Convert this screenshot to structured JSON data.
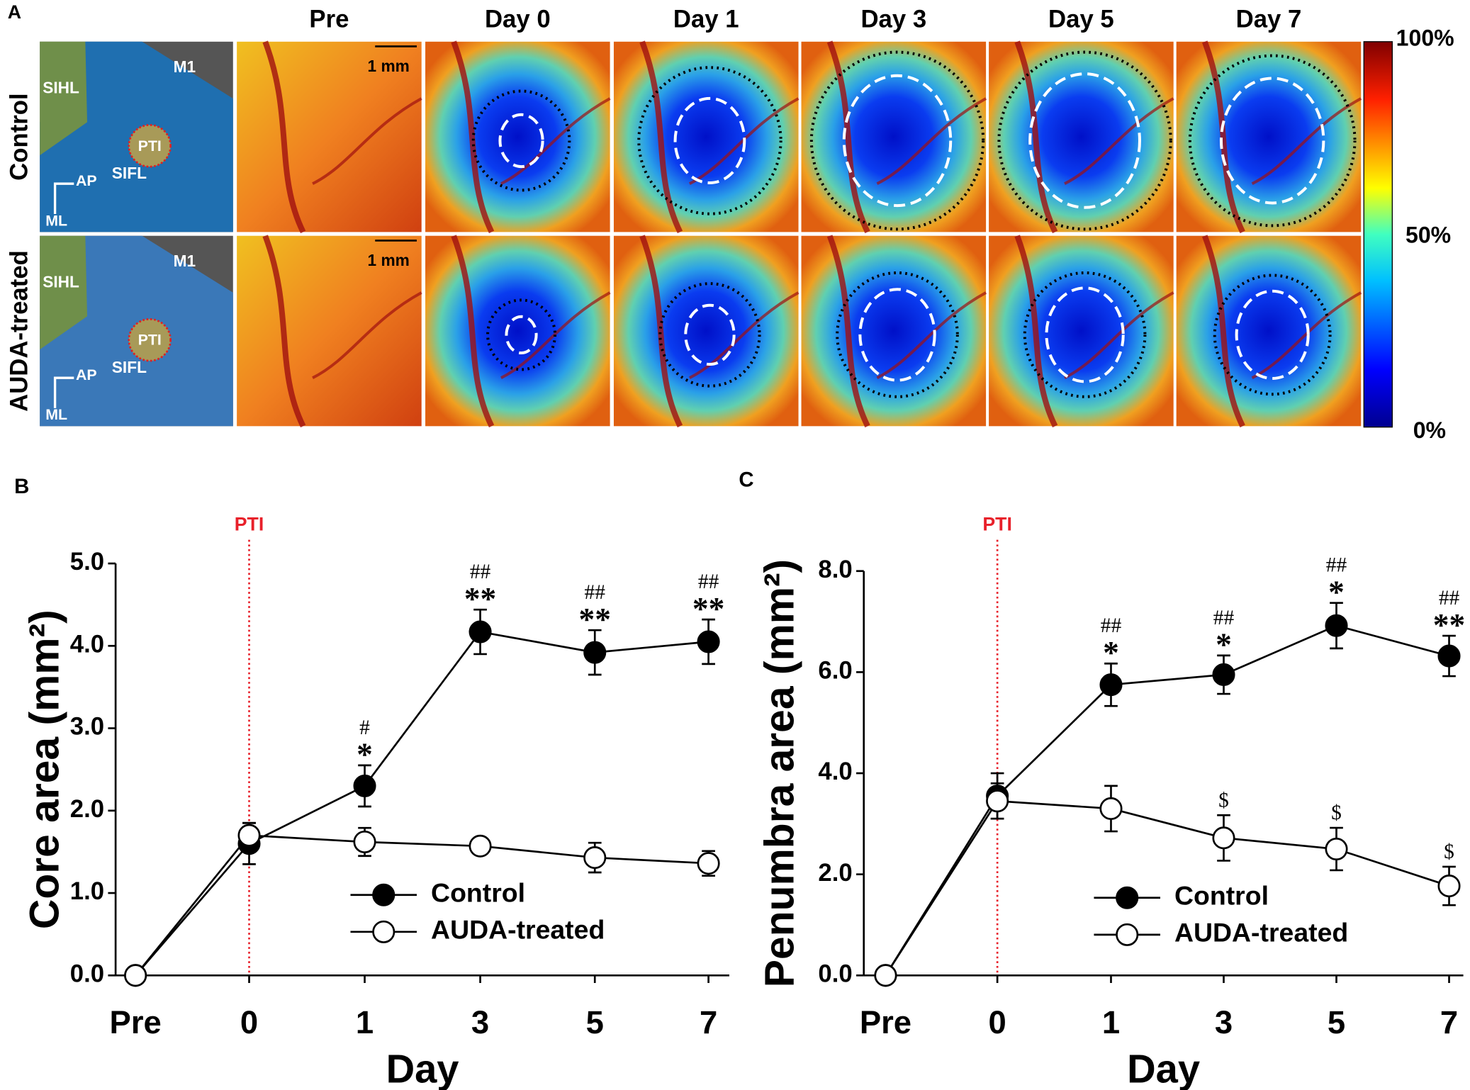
{
  "panel_a": {
    "letter": "A",
    "columns": [
      "Pre",
      "Day 0",
      "Day 1",
      "Day 3",
      "Day 5",
      "Day 7"
    ],
    "rows": [
      "Control",
      "AUDA-treated"
    ],
    "anatomy": {
      "sihl": "SIHL",
      "m1": "M1",
      "pti": "PTI",
      "ap": "AP",
      "sifl": "SIFL",
      "ml": "ML"
    },
    "scale_bar": "1 mm",
    "colorbar": {
      "top": "100%",
      "mid": "50%",
      "bottom": "0%"
    }
  },
  "chart_data": [
    {
      "type": "line",
      "letter": "B",
      "xlabel": "Day",
      "ylabel": "Core area (mm²)",
      "categories": [
        "Pre",
        "0",
        "1",
        "3",
        "5",
        "7"
      ],
      "ylim": [
        0,
        5
      ],
      "yticks": [
        {
          "value": 0,
          "label": "0.0"
        },
        {
          "value": 1,
          "label": "1.0"
        },
        {
          "value": 2,
          "label": "2.0"
        },
        {
          "value": 3,
          "label": "3.0"
        },
        {
          "value": 4,
          "label": "4.0"
        },
        {
          "value": 5,
          "label": "5.0"
        }
      ],
      "marker_line": {
        "label": "PTI",
        "category": "0",
        "color": "#e8202a"
      },
      "series": [
        {
          "name": "Control",
          "color": "#000000",
          "values": [
            0,
            1.6,
            2.3,
            4.17,
            3.92,
            4.05
          ],
          "errors": [
            0,
            0.25,
            0.25,
            0.27,
            0.27,
            0.27
          ]
        },
        {
          "name": "AUDA-treated",
          "color": "#ffffff",
          "values": [
            0,
            1.7,
            1.62,
            1.57,
            1.43,
            1.36
          ],
          "errors": [
            0,
            0.15,
            0.17,
            0.08,
            0.18,
            0.15
          ]
        }
      ],
      "annotations": [
        {
          "category": "1",
          "series": 0,
          "lines": [
            "#",
            "*"
          ]
        },
        {
          "category": "3",
          "series": 0,
          "lines": [
            "##",
            "**"
          ]
        },
        {
          "category": "5",
          "series": 0,
          "lines": [
            "##",
            "**"
          ]
        },
        {
          "category": "7",
          "series": 0,
          "lines": [
            "##",
            "**"
          ]
        }
      ]
    },
    {
      "type": "line",
      "letter": "C",
      "xlabel": "Day",
      "ylabel": "Penumbra area (mm²)",
      "categories": [
        "Pre",
        "0",
        "1",
        "3",
        "5",
        "7"
      ],
      "ylim": [
        0,
        8
      ],
      "yticks": [
        {
          "value": 0,
          "label": "0.0"
        },
        {
          "value": 2,
          "label": "2.0"
        },
        {
          "value": 4,
          "label": "4.0"
        },
        {
          "value": 6,
          "label": "6.0"
        },
        {
          "value": 8,
          "label": "8.0"
        }
      ],
      "marker_line": {
        "label": "PTI",
        "category": "0",
        "color": "#e8202a"
      },
      "series": [
        {
          "name": "Control",
          "color": "#000000",
          "values": [
            0,
            3.55,
            5.75,
            5.95,
            6.92,
            6.32
          ],
          "errors": [
            0,
            0.45,
            0.42,
            0.38,
            0.45,
            0.4
          ]
        },
        {
          "name": "AUDA-treated",
          "color": "#ffffff",
          "values": [
            0,
            3.45,
            3.3,
            2.72,
            2.5,
            1.77
          ],
          "errors": [
            0,
            0.35,
            0.45,
            0.45,
            0.42,
            0.38
          ]
        }
      ],
      "annotations": [
        {
          "category": "1",
          "series": 0,
          "lines": [
            "##",
            "*"
          ]
        },
        {
          "category": "3",
          "series": 0,
          "lines": [
            "##",
            "*"
          ]
        },
        {
          "category": "5",
          "series": 0,
          "lines": [
            "##",
            "*"
          ]
        },
        {
          "category": "7",
          "series": 0,
          "lines": [
            "##",
            "**"
          ]
        },
        {
          "category": "3",
          "series": 1,
          "lines": [
            "$"
          ]
        },
        {
          "category": "5",
          "series": 1,
          "lines": [
            "$"
          ]
        },
        {
          "category": "7",
          "series": 1,
          "lines": [
            "$"
          ]
        }
      ]
    }
  ]
}
